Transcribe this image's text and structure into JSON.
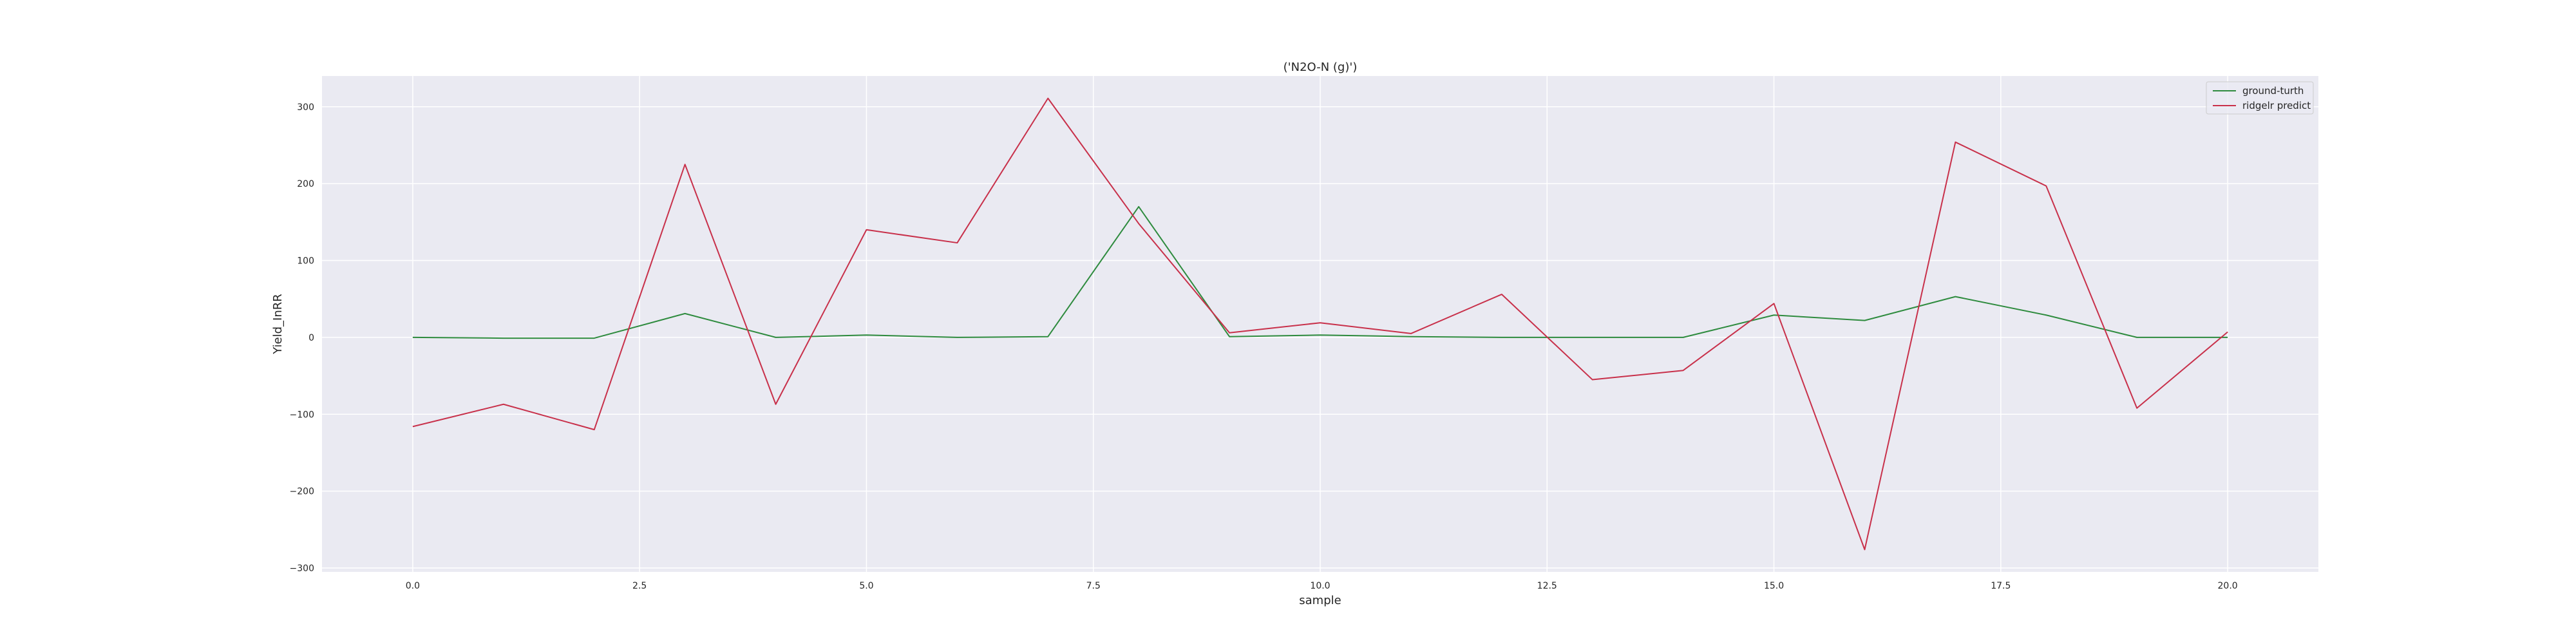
{
  "chart_data": {
    "type": "line",
    "title": "('N2O-N (g)')",
    "xlabel": "sample",
    "ylabel": "Yield_InRR",
    "xlim": [
      -1.0,
      21.0
    ],
    "ylim": [
      -305,
      340
    ],
    "xticks": [
      0.0,
      2.5,
      5.0,
      7.5,
      10.0,
      12.5,
      15.0,
      17.5,
      20.0
    ],
    "xtick_labels": [
      "0.0",
      "2.5",
      "5.0",
      "7.5",
      "10.0",
      "12.5",
      "15.0",
      "17.5",
      "20.0"
    ],
    "yticks": [
      -300,
      -200,
      -100,
      0,
      100,
      200,
      300
    ],
    "ytick_labels": [
      "−300",
      "−200",
      "−100",
      "0",
      "100",
      "200",
      "300"
    ],
    "grid": true,
    "legend_position": "top-right",
    "background_color": "#eaeaf2",
    "x": [
      0,
      1,
      2,
      3,
      4,
      5,
      6,
      7,
      8,
      9,
      10,
      11,
      12,
      13,
      14,
      15,
      16,
      17,
      18,
      19,
      20
    ],
    "series": [
      {
        "name": "ground-turth",
        "color": "#2e8b3e",
        "values": [
          0,
          -1,
          -1,
          31,
          0,
          3,
          0,
          1,
          170,
          1,
          3,
          1,
          0,
          0,
          0,
          29,
          22,
          53,
          29,
          0,
          0
        ]
      },
      {
        "name": "ridgelr predict",
        "color": "#c8304a",
        "values": [
          -116,
          -87,
          -120,
          225,
          -87,
          140,
          123,
          311,
          148,
          6,
          19,
          5,
          56,
          -55,
          -43,
          44,
          -276,
          254,
          197,
          -92,
          7
        ]
      }
    ]
  }
}
